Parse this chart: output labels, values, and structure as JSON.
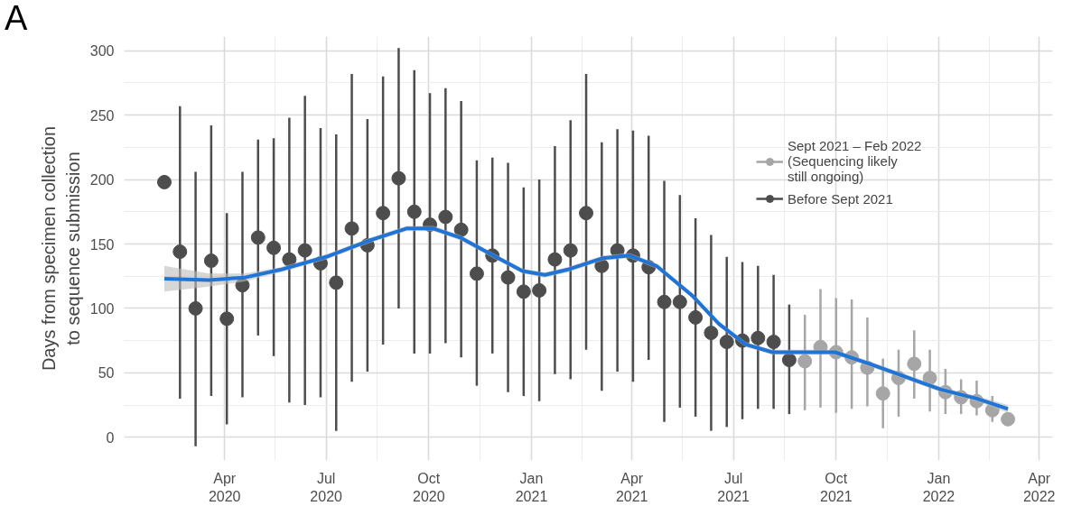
{
  "chart_data": {
    "type": "scatter",
    "ylabel": "Days from specimen collection\nto sequence submission",
    "annotations": [
      "A"
    ],
    "xlim": [
      "2020-01-02",
      "2022-04-13"
    ],
    "ylim": [
      -18,
      311
    ],
    "yticks": [
      0,
      50,
      100,
      150,
      200,
      250,
      300
    ],
    "xticks": [
      {
        "value": "2020-04-01",
        "label": "Apr\n2020"
      },
      {
        "value": "2020-07-01",
        "label": "Jul\n2020"
      },
      {
        "value": "2020-10-01",
        "label": "Oct\n2020"
      },
      {
        "value": "2021-01-01",
        "label": "Jan\n2021"
      },
      {
        "value": "2021-04-01",
        "label": "Apr\n2021"
      },
      {
        "value": "2021-07-01",
        "label": "Jul\n2021"
      },
      {
        "value": "2021-10-01",
        "label": "Oct\n2021"
      },
      {
        "value": "2022-01-01",
        "label": "Jan\n2022"
      },
      {
        "value": "2022-04-01",
        "label": "Apr\n2022"
      }
    ],
    "grid": true,
    "legend": "top right",
    "marker": "circle",
    "series": [
      {
        "name": "Sept 2021 – Feb 2022\n(Sequencing likely\nstill ongoing)",
        "color": "#a6a6a6",
        "x": [
          "2021-09-03",
          "2021-09-17",
          "2021-10-01",
          "2021-10-15",
          "2021-10-29",
          "2021-11-12",
          "2021-11-26",
          "2021-12-10",
          "2021-12-24",
          "2022-01-07",
          "2022-01-21",
          "2022-02-04",
          "2022-02-18",
          "2022-03-04"
        ],
        "values": [
          59,
          70,
          66,
          62,
          54,
          34,
          46,
          57,
          46,
          35,
          31,
          28,
          21,
          14
        ],
        "errors": [
          [
            21,
            95
          ],
          [
            23,
            115
          ],
          [
            19,
            108
          ],
          [
            22,
            107
          ],
          [
            24,
            93
          ],
          [
            7,
            61
          ],
          [
            16,
            68
          ],
          [
            30,
            83
          ],
          [
            20,
            68
          ],
          [
            18,
            53
          ],
          [
            18,
            45
          ],
          [
            17,
            44
          ],
          [
            12,
            32
          ],
          null
        ]
      },
      {
        "name": "Before Sept 2021",
        "color": "#4d4d4d",
        "x": [
          "2020-02-07",
          "2020-02-21",
          "2020-03-06",
          "2020-03-20",
          "2020-04-03",
          "2020-04-17",
          "2020-05-01",
          "2020-05-15",
          "2020-05-29",
          "2020-06-12",
          "2020-06-26",
          "2020-07-10",
          "2020-07-24",
          "2020-08-07",
          "2020-08-21",
          "2020-09-04",
          "2020-09-18",
          "2020-10-02",
          "2020-10-16",
          "2020-10-30",
          "2020-11-13",
          "2020-11-27",
          "2020-12-11",
          "2020-12-25",
          "2021-01-08",
          "2021-01-22",
          "2021-02-05",
          "2021-02-19",
          "2021-03-05",
          "2021-03-19",
          "2021-04-02",
          "2021-04-16",
          "2021-04-30",
          "2021-05-14",
          "2021-05-28",
          "2021-06-11",
          "2021-06-25",
          "2021-07-09",
          "2021-07-23",
          "2021-08-06",
          "2021-08-20"
        ],
        "values": [
          198,
          144,
          100,
          137,
          92,
          118,
          155,
          147,
          138,
          145,
          135,
          120,
          162,
          149,
          174,
          201,
          175,
          165,
          171,
          161,
          127,
          141,
          124,
          113,
          114,
          138,
          145,
          174,
          133,
          145,
          141,
          132,
          105,
          105,
          93,
          81,
          74,
          75,
          77,
          74,
          60
        ],
        "errors": [
          null,
          [
            30,
            257
          ],
          [
            -7,
            206
          ],
          [
            32,
            242
          ],
          [
            10,
            174
          ],
          [
            31,
            206
          ],
          [
            79,
            231
          ],
          [
            63,
            232
          ],
          [
            27,
            248
          ],
          [
            25,
            265
          ],
          [
            31,
            240
          ],
          [
            5,
            235
          ],
          [
            43,
            282
          ],
          [
            51,
            247
          ],
          [
            72,
            280
          ],
          [
            100,
            302
          ],
          [
            65,
            285
          ],
          [
            65,
            267
          ],
          [
            73,
            271
          ],
          [
            62,
            261
          ],
          [
            40,
            215
          ],
          [
            65,
            217
          ],
          [
            35,
            213
          ],
          [
            32,
            194
          ],
          [
            28,
            200
          ],
          [
            49,
            226
          ],
          [
            45,
            246
          ],
          [
            68,
            282
          ],
          [
            36,
            229
          ],
          [
            51,
            239
          ],
          [
            43,
            238
          ],
          [
            60,
            234
          ],
          [
            12,
            199
          ],
          [
            23,
            188
          ],
          [
            16,
            170
          ],
          [
            5,
            157
          ],
          [
            8,
            140
          ],
          [
            14,
            136
          ],
          [
            22,
            133
          ],
          [
            22,
            126
          ],
          [
            18,
            103
          ]
        ]
      },
      {
        "type": "line",
        "color": "#1f74d6",
        "marker": "none",
        "x": [
          "2020-02-07",
          "2020-03-18",
          "2020-04-19",
          "2020-05-21",
          "2020-07-01",
          "2020-08-10",
          "2020-09-11",
          "2020-10-05",
          "2020-10-29",
          "2020-11-30",
          "2020-12-24",
          "2021-01-13",
          "2021-02-02",
          "2021-03-06",
          "2021-03-30",
          "2021-04-23",
          "2021-05-25",
          "2021-06-18",
          "2021-07-12",
          "2021-08-05",
          "2021-09-06",
          "2021-09-30",
          "2021-10-31",
          "2021-12-02",
          "2022-01-03",
          "2022-02-04",
          "2022-03-04"
        ],
        "values": [
          123,
          122,
          124,
          130,
          140,
          153,
          162,
          162,
          155,
          140,
          129,
          126,
          130,
          139,
          141,
          133,
          110,
          88,
          72,
          66,
          66,
          66,
          57,
          47,
          37,
          30,
          22
        ],
        "lower": [
          113,
          117,
          121,
          128,
          138,
          151,
          160,
          160,
          153,
          138,
          127,
          124,
          128,
          137,
          139,
          131,
          108,
          86,
          70,
          64,
          64,
          64,
          55,
          45,
          35,
          28,
          19
        ],
        "upper": [
          133,
          127,
          127,
          132,
          142,
          155,
          164,
          164,
          157,
          142,
          131,
          128,
          132,
          141,
          143,
          135,
          112,
          90,
          74,
          68,
          68,
          68,
          59,
          49,
          39,
          32,
          25
        ]
      }
    ]
  }
}
